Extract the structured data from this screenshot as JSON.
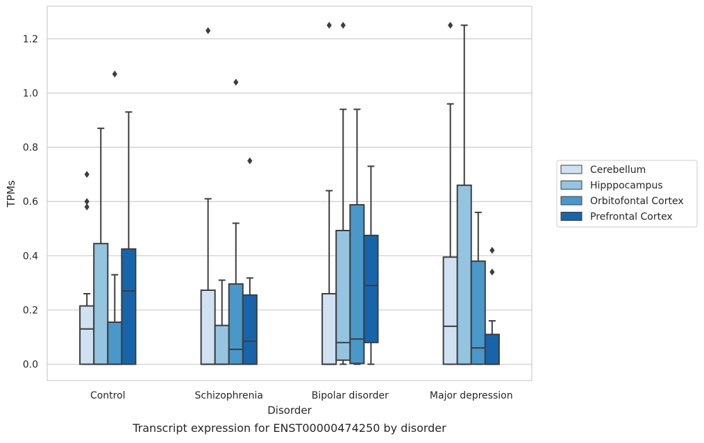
{
  "chart_data": {
    "type": "boxplot",
    "title": "Transcript expression for ENST00000474250 by disorder",
    "xlabel": "Disorder",
    "ylabel": "TPMs",
    "ylim": [
      -0.06,
      1.32
    ],
    "yticks": [
      "0.0",
      "0.2",
      "0.4",
      "0.6",
      "0.8",
      "1.0",
      "1.2"
    ],
    "categories": [
      "Control",
      "Schizophrenia",
      "Bipolar disorder",
      "Major depression"
    ],
    "grid": "horizontal",
    "legend_position": "right",
    "series": [
      {
        "name": "Cerebellum",
        "color": "#d0e1f2",
        "boxes": [
          {
            "min": 0.0,
            "q1": 0.0,
            "median": 0.13,
            "q3": 0.215,
            "max": 0.26,
            "outliers": [
              0.58,
              0.6,
              0.7
            ]
          },
          {
            "min": 0.0,
            "q1": 0.0,
            "median": 0.0,
            "q3": 0.273,
            "max": 0.61,
            "outliers": [
              1.23
            ]
          },
          {
            "min": 0.0,
            "q1": 0.0,
            "median": 0.0,
            "q3": 0.26,
            "max": 0.64,
            "outliers": [
              1.25
            ]
          },
          {
            "min": 0.0,
            "q1": 0.0,
            "median": 0.14,
            "q3": 0.395,
            "max": 0.96,
            "outliers": [
              1.25
            ]
          }
        ]
      },
      {
        "name": "Hipppocampus",
        "color": "#94c4df",
        "boxes": [
          {
            "min": 0.0,
            "q1": 0.0,
            "median": 0.0,
            "q3": 0.445,
            "max": 0.87,
            "outliers": []
          },
          {
            "min": 0.0,
            "q1": 0.0,
            "median": 0.0,
            "q3": 0.143,
            "max": 0.31,
            "outliers": []
          },
          {
            "min": 0.0,
            "q1": 0.015,
            "median": 0.08,
            "q3": 0.493,
            "max": 0.94,
            "outliers": [
              1.25
            ]
          },
          {
            "min": 0.0,
            "q1": 0.0,
            "median": 0.0,
            "q3": 0.66,
            "max": 1.25,
            "outliers": []
          }
        ]
      },
      {
        "name": "Orbitofontal Cortex",
        "color": "#4a98c9",
        "boxes": [
          {
            "min": 0.0,
            "q1": 0.0,
            "median": 0.0,
            "q3": 0.155,
            "max": 0.33,
            "outliers": [
              1.07
            ]
          },
          {
            "min": 0.0,
            "q1": 0.0,
            "median": 0.055,
            "q3": 0.296,
            "max": 0.52,
            "outliers": [
              1.04
            ]
          },
          {
            "min": 0.0,
            "q1": 0.003,
            "median": 0.093,
            "q3": 0.588,
            "max": 0.94,
            "outliers": []
          },
          {
            "min": 0.0,
            "q1": 0.0,
            "median": 0.06,
            "q3": 0.38,
            "max": 0.56,
            "outliers": []
          }
        ]
      },
      {
        "name": "Prefrontal Cortex",
        "color": "#1764ab",
        "boxes": [
          {
            "min": 0.0,
            "q1": 0.0,
            "median": 0.27,
            "q3": 0.425,
            "max": 0.93,
            "outliers": []
          },
          {
            "min": 0.0,
            "q1": 0.0,
            "median": 0.085,
            "q3": 0.255,
            "max": 0.318,
            "outliers": [
              0.75
            ]
          },
          {
            "min": 0.0,
            "q1": 0.08,
            "median": 0.29,
            "q3": 0.475,
            "max": 0.73,
            "outliers": []
          },
          {
            "min": 0.0,
            "q1": 0.0,
            "median": 0.0,
            "q3": 0.11,
            "max": 0.16,
            "outliers": [
              0.34,
              0.42
            ]
          }
        ]
      }
    ]
  }
}
